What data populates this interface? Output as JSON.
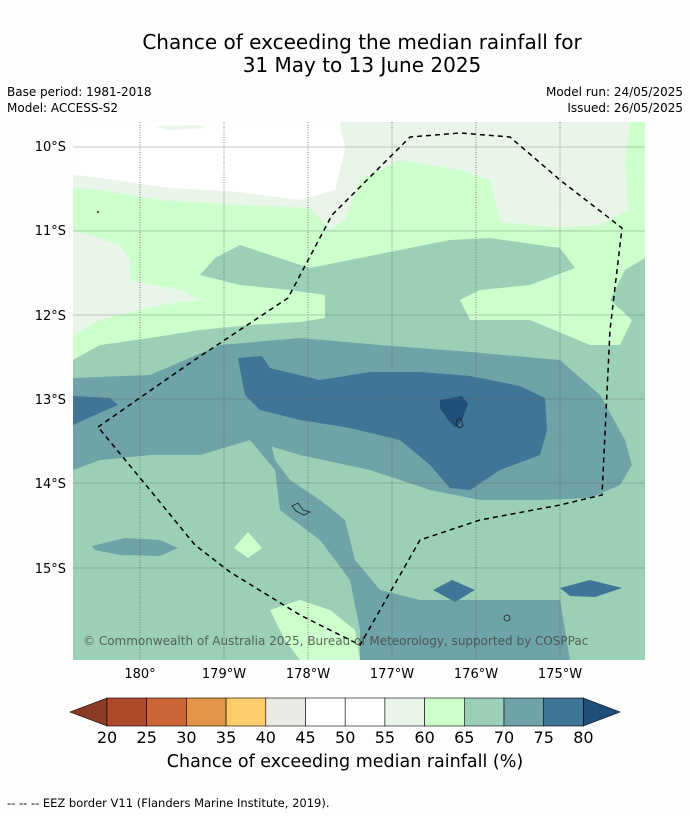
{
  "title_line1": "Chance of exceeding the median rainfall for",
  "title_line2": "31 May to 13 June 2025",
  "base_period": "Base period: 1981-2018",
  "model": "Model: ACCESS-S2",
  "model_run": "Model run: 24/05/2025",
  "issued": "Issued: 26/05/2025",
  "lat_labels": [
    "10°S",
    "11°S",
    "12°S",
    "13°S",
    "14°S",
    "15°S"
  ],
  "lon_labels": [
    "180°",
    "179°W",
    "178°W",
    "177°W",
    "176°W",
    "175°W"
  ],
  "copyright": "© Commonwealth of Australia 2025, Bureau of Meteorology, supported by COSPPac",
  "colorbar": {
    "ticks": [
      "20",
      "25",
      "30",
      "35",
      "40",
      "45",
      "50",
      "55",
      "60",
      "65",
      "70",
      "75",
      "80"
    ],
    "label": "Chance of exceeding median rainfall (%)",
    "under_color": "#8b3a25",
    "over_color": "#1f4e79",
    "colors": [
      "#b0482a",
      "#cc6535",
      "#e29448",
      "#fccb6a",
      "#e8e8e4",
      "#ffffff",
      "#ffffff",
      "#e9f5e9",
      "#ccffcc",
      "#9bd0b7",
      "#6ea3a7",
      "#3f7596"
    ]
  },
  "footer": "-- -- -- EEZ border V11 (Flanders Marine Institute, 2019)."
}
